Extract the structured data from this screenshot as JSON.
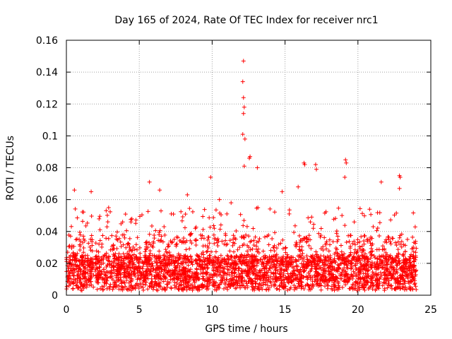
{
  "chart_data": {
    "type": "scatter",
    "title": "Day 165 of 2024, Rate Of TEC Index for receiver nrc1",
    "xlabel": "GPS time / hours",
    "ylabel": "ROTI / TECUs",
    "xlim": [
      0,
      25
    ],
    "ylim": [
      0,
      0.16
    ],
    "xticks": [
      0,
      5,
      10,
      15,
      20,
      25
    ],
    "xtick_labels": [
      "0",
      "5",
      "10",
      "15",
      "20",
      "25"
    ],
    "yticks": [
      0,
      0.02,
      0.04,
      0.06,
      0.08,
      0.1,
      0.12,
      0.14,
      0.16
    ],
    "ytick_labels": [
      "0",
      "0.02",
      "0.04",
      "0.06",
      "0.08",
      "0.1",
      "0.12",
      "0.14",
      "0.16"
    ],
    "grid": true,
    "marker": "+",
    "marker_color": "#ff0000",
    "x_coverage_hours": [
      0,
      24
    ],
    "series": [
      {
        "name": "ROTI",
        "description_of_bulk": "dense band of points mostly between 0.003 and 0.045 TECU across 0-24 h",
        "notable_points": [
          {
            "x": 12.15,
            "y": 0.147
          },
          {
            "x": 12.1,
            "y": 0.134
          },
          {
            "x": 12.15,
            "y": 0.124
          },
          {
            "x": 12.2,
            "y": 0.118
          },
          {
            "x": 12.15,
            "y": 0.114
          },
          {
            "x": 12.1,
            "y": 0.101
          },
          {
            "x": 12.25,
            "y": 0.098
          },
          {
            "x": 12.6,
            "y": 0.087
          },
          {
            "x": 12.55,
            "y": 0.086
          },
          {
            "x": 13.1,
            "y": 0.08
          },
          {
            "x": 12.2,
            "y": 0.081
          },
          {
            "x": 9.9,
            "y": 0.074
          },
          {
            "x": 5.7,
            "y": 0.071
          },
          {
            "x": 16.3,
            "y": 0.083
          },
          {
            "x": 16.35,
            "y": 0.082
          },
          {
            "x": 17.1,
            "y": 0.082
          },
          {
            "x": 17.15,
            "y": 0.079
          },
          {
            "x": 19.15,
            "y": 0.085
          },
          {
            "x": 19.2,
            "y": 0.083
          },
          {
            "x": 19.1,
            "y": 0.074
          },
          {
            "x": 21.6,
            "y": 0.071
          },
          {
            "x": 22.85,
            "y": 0.075
          },
          {
            "x": 22.9,
            "y": 0.074
          },
          {
            "x": 22.85,
            "y": 0.067
          },
          {
            "x": 0.55,
            "y": 0.066
          },
          {
            "x": 1.7,
            "y": 0.065
          },
          {
            "x": 6.4,
            "y": 0.066
          },
          {
            "x": 8.3,
            "y": 0.063
          },
          {
            "x": 14.8,
            "y": 0.065
          },
          {
            "x": 15.9,
            "y": 0.068
          },
          {
            "x": 10.5,
            "y": 0.06
          },
          {
            "x": 11.3,
            "y": 0.058
          }
        ]
      }
    ]
  }
}
